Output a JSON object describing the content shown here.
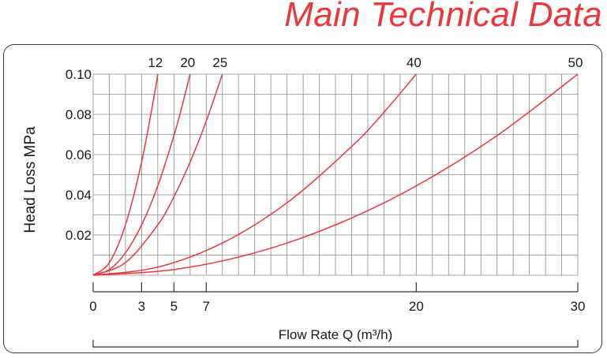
{
  "title": "Main Technical Data",
  "colors": {
    "title": "#e8383d",
    "curve": "#e8383d",
    "grid": "#8a8a8a",
    "axis": "#333333",
    "frame": "#3a3a3a"
  },
  "chart_data": {
    "type": "line",
    "title": "",
    "xlabel": "Flow Rate Q (m³/h)",
    "ylabel": "Head Loss MPa",
    "xlim": [
      0,
      30
    ],
    "ylim": [
      0,
      0.1
    ],
    "grid": true,
    "x_ticks": [
      0,
      3,
      5,
      7,
      20,
      30
    ],
    "y_ticks": [
      0.02,
      0.04,
      0.06,
      0.08,
      0.1
    ],
    "y_tick_labels": [
      "0.02",
      "0.04",
      "0.06",
      "0.08",
      "0.10"
    ],
    "series": [
      {
        "name": "12",
        "x": [
          0,
          1,
          2,
          3,
          3.8,
          4
        ],
        "y": [
          0,
          0.00625,
          0.025,
          0.05625,
          0.09025,
          0.1
        ]
      },
      {
        "name": "20",
        "x": [
          0,
          1,
          2,
          3,
          4,
          5,
          5.5,
          6
        ],
        "y": [
          0,
          0.0028,
          0.0111,
          0.025,
          0.0444,
          0.0694,
          0.084,
          0.1
        ]
      },
      {
        "name": "25",
        "x": [
          0,
          2,
          4,
          5,
          6,
          7,
          8
        ],
        "y": [
          0,
          0.00625,
          0.025,
          0.039,
          0.05625,
          0.0766,
          0.1
        ]
      },
      {
        "name": "40",
        "x": [
          0,
          4,
          8,
          12,
          16,
          18,
          20
        ],
        "y": [
          0,
          0.004,
          0.016,
          0.036,
          0.064,
          0.081,
          0.1
        ]
      },
      {
        "name": "50",
        "x": [
          0,
          5,
          10,
          15,
          20,
          25,
          30
        ],
        "y": [
          0,
          0.0028,
          0.0111,
          0.025,
          0.0444,
          0.0694,
          0.1
        ]
      }
    ]
  }
}
